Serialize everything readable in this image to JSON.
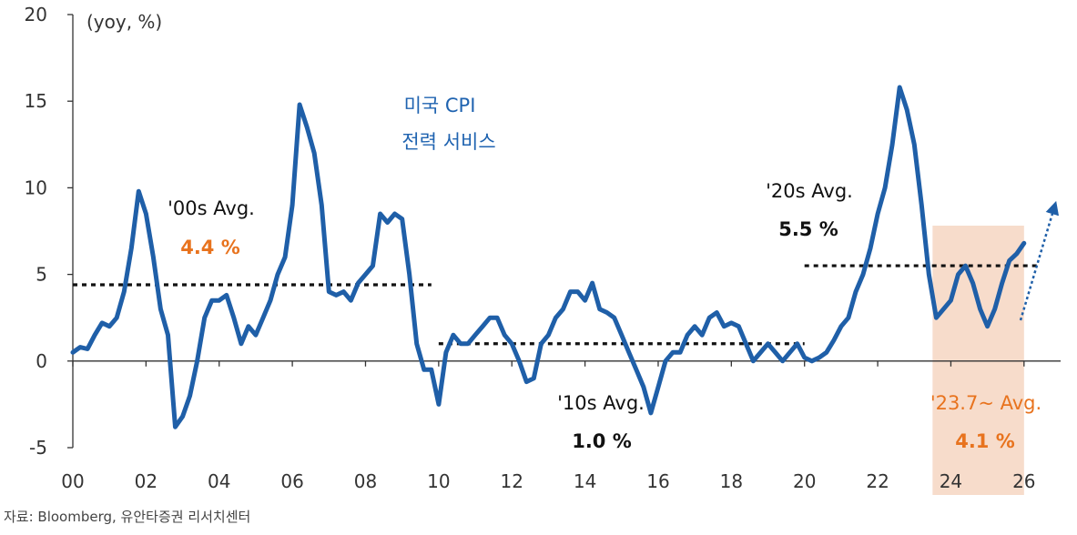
{
  "chart_data": {
    "type": "line",
    "unit_label": "(yoy, %)",
    "title_line1": "미국 CPI",
    "title_line2": "전력 서비스",
    "x_ticks": [
      "00",
      "02",
      "04",
      "06",
      "08",
      "10",
      "12",
      "14",
      "16",
      "18",
      "20",
      "22",
      "24",
      "26"
    ],
    "y_ticks": [
      "20",
      "15",
      "10",
      "5",
      "0",
      "-5"
    ],
    "xlim": [
      2000,
      2027
    ],
    "ylim": [
      -5,
      20
    ],
    "series": [
      {
        "name": "미국 CPI 전력 서비스",
        "x": [
          2000.0,
          2000.2,
          2000.4,
          2000.6,
          2000.8,
          2001.0,
          2001.2,
          2001.4,
          2001.6,
          2001.8,
          2002.0,
          2002.2,
          2002.4,
          2002.6,
          2002.8,
          2003.0,
          2003.2,
          2003.4,
          2003.6,
          2003.8,
          2004.0,
          2004.2,
          2004.4,
          2004.6,
          2004.8,
          2005.0,
          2005.2,
          2005.4,
          2005.6,
          2005.8,
          2006.0,
          2006.2,
          2006.4,
          2006.6,
          2006.8,
          2007.0,
          2007.2,
          2007.4,
          2007.6,
          2007.8,
          2008.0,
          2008.2,
          2008.4,
          2008.6,
          2008.8,
          2009.0,
          2009.2,
          2009.4,
          2009.6,
          2009.8,
          2010.0,
          2010.2,
          2010.4,
          2010.6,
          2010.8,
          2011.0,
          2011.2,
          2011.4,
          2011.6,
          2011.8,
          2012.0,
          2012.2,
          2012.4,
          2012.6,
          2012.8,
          2013.0,
          2013.2,
          2013.4,
          2013.6,
          2013.8,
          2014.0,
          2014.2,
          2014.4,
          2014.6,
          2014.8,
          2015.0,
          2015.2,
          2015.4,
          2015.6,
          2015.8,
          2016.0,
          2016.2,
          2016.4,
          2016.6,
          2016.8,
          2017.0,
          2017.2,
          2017.4,
          2017.6,
          2017.8,
          2018.0,
          2018.2,
          2018.4,
          2018.6,
          2018.8,
          2019.0,
          2019.2,
          2019.4,
          2019.6,
          2019.8,
          2020.0,
          2020.2,
          2020.4,
          2020.6,
          2020.8,
          2021.0,
          2021.2,
          2021.4,
          2021.6,
          2021.8,
          2022.0,
          2022.2,
          2022.4,
          2022.6,
          2022.8,
          2023.0,
          2023.2,
          2023.4,
          2023.6,
          2023.8,
          2024.0,
          2024.2,
          2024.4,
          2024.6,
          2024.8,
          2025.0,
          2025.2,
          2025.4,
          2025.6,
          2025.8,
          2026.0
        ],
        "y": [
          0.5,
          0.8,
          0.7,
          1.5,
          2.2,
          2.0,
          2.5,
          4.0,
          6.5,
          9.8,
          8.5,
          6.0,
          3.0,
          1.5,
          -3.8,
          -3.2,
          -2.0,
          0.0,
          2.5,
          3.5,
          3.5,
          3.8,
          2.5,
          1.0,
          2.0,
          1.5,
          2.5,
          3.5,
          5.0,
          6.0,
          9.0,
          14.8,
          13.5,
          12.0,
          9.0,
          4.0,
          3.8,
          4.0,
          3.5,
          4.5,
          5.0,
          5.5,
          8.5,
          8.0,
          8.5,
          8.2,
          5.0,
          1.0,
          -0.5,
          -0.5,
          -2.5,
          0.5,
          1.5,
          1.0,
          1.0,
          1.5,
          2.0,
          2.5,
          2.5,
          1.5,
          1.0,
          0.0,
          -1.2,
          -1.0,
          1.0,
          1.5,
          2.5,
          3.0,
          4.0,
          4.0,
          3.5,
          4.5,
          3.0,
          2.8,
          2.5,
          1.5,
          0.5,
          -0.5,
          -1.5,
          -3.0,
          -1.5,
          0.0,
          0.5,
          0.5,
          1.5,
          2.0,
          1.5,
          2.5,
          2.8,
          2.0,
          2.2,
          2.0,
          1.0,
          0.0,
          0.5,
          1.0,
          0.5,
          0.0,
          0.5,
          1.0,
          0.2,
          0.0,
          0.2,
          0.5,
          1.2,
          2.0,
          2.5,
          4.0,
          5.0,
          6.5,
          8.5,
          10.0,
          12.5,
          15.8,
          14.5,
          12.5,
          9.0,
          5.0,
          2.5,
          3.0,
          3.5,
          5.0,
          5.5,
          4.5,
          3.0,
          2.0,
          3.0,
          4.5,
          5.8,
          6.2,
          6.8
        ]
      }
    ],
    "averages": [
      {
        "label": "'00s Avg.",
        "value_label": "4.4 %",
        "value": 4.4,
        "x_range": [
          2000,
          2009.8
        ]
      },
      {
        "label": "'10s Avg.",
        "value_label": "1.0 %",
        "value": 1.0,
        "x_range": [
          2010,
          2020
        ]
      },
      {
        "label": "'20s Avg.",
        "value_label": "5.5 %",
        "value": 5.5,
        "x_range": [
          2020,
          2026.4
        ]
      },
      {
        "label": "'23.7~ Avg.",
        "value_label": "4.1 %",
        "value": 4.1
      }
    ],
    "highlight_range": [
      2023.5,
      2026
    ],
    "colors": {
      "line": "#1f5fa8",
      "title": "#1f63b0",
      "orange": "#e8731e",
      "shade": "#f7dccb",
      "axis": "#333333",
      "avg_line": "#111111"
    }
  },
  "source": "자료: Bloomberg, 유안타증권 리서치센터"
}
